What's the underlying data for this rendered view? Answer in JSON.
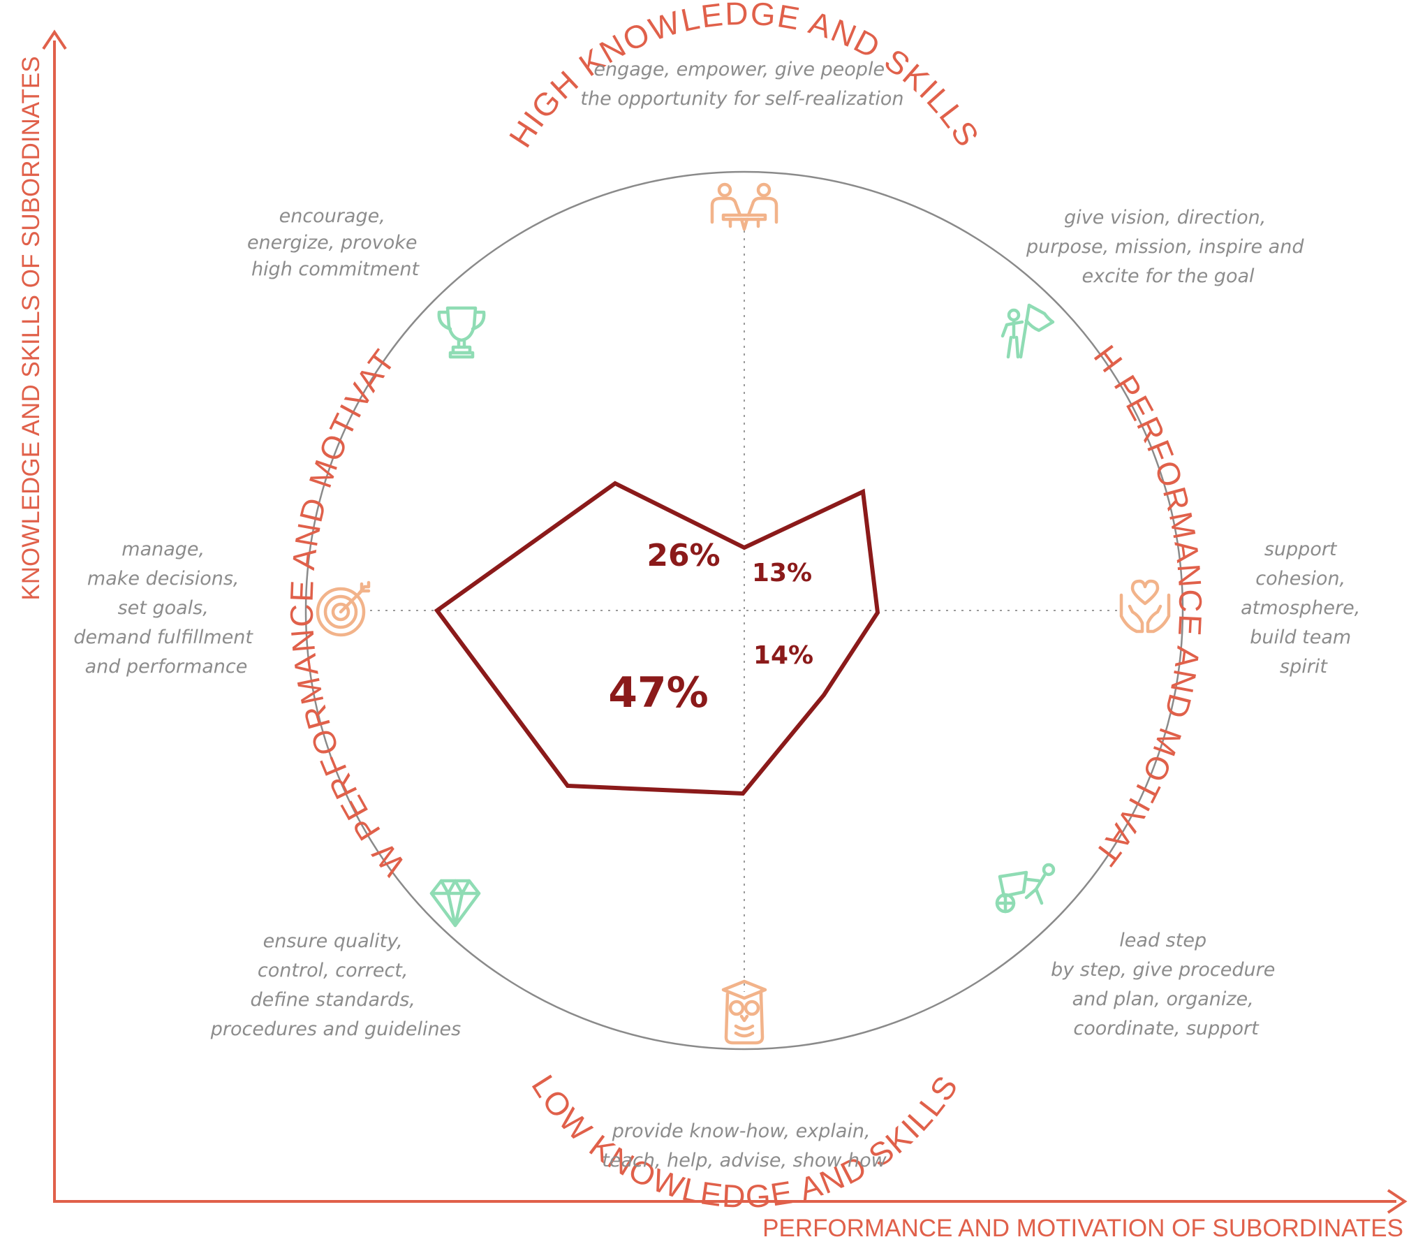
{
  "colors": {
    "axis": "#e0604a",
    "label": "#e0604a",
    "polygon": "#8b1a1a",
    "circle": "#8a8a8a",
    "description": "#8c8c8c",
    "icon_green": "#8fdcb4",
    "icon_orange": "#f2b38a"
  },
  "axes": {
    "x_label": "PERFORMANCE AND MOTIVATION OF SUBORDINATES",
    "y_label": "KNOWLEDGE AND SKILLS OF SUBORDINATES"
  },
  "arc_labels": {
    "top": "HIGH KNOWLEDGE AND SKILLS",
    "bottom": "LOW KNOWLEDGE AND SKILLS",
    "right": "HIGH PERFORMANCE AND MOTIVATION",
    "left": "LOW PERFORMANCE AND MOTIVATION"
  },
  "percentages": {
    "upper_left": "26%",
    "upper_right": "13%",
    "lower_right": "14%",
    "lower_left": "47%"
  },
  "descriptions": {
    "top": [
      "engage, empower, give people",
      "the opportunity for self-realization"
    ],
    "top_right": [
      "give vision, direction,",
      "purpose, mission, inspire and",
      "excite for the goal"
    ],
    "right": [
      "support",
      "cohesion,",
      "atmosphere,",
      "build team",
      "spirit"
    ],
    "bottom_right": [
      "lead step",
      "by step, give procedure",
      "and plan, organize,",
      "coordinate, support"
    ],
    "bottom": [
      "provide know-how, explain,",
      "teach, help, advise, show how"
    ],
    "bottom_left": [
      "ensure quality,",
      "control, correct,",
      "define standards,",
      "procedures and guidelines"
    ],
    "left": [
      "manage,",
      "make decisions,",
      "set goals,",
      "demand fulfillment",
      "and performance"
    ],
    "top_left": [
      "encourage,",
      "energize, provoke",
      "high commitment"
    ]
  },
  "icons": {
    "top": "meeting-people-icon",
    "top_right": "flag-bearer-icon",
    "right": "heart-in-hands-icon",
    "bottom_right": "worker-cart-icon",
    "bottom": "graduate-owl-icon",
    "bottom_left": "diamond-icon",
    "left": "target-icon",
    "top_left": "trophy-icon"
  }
}
